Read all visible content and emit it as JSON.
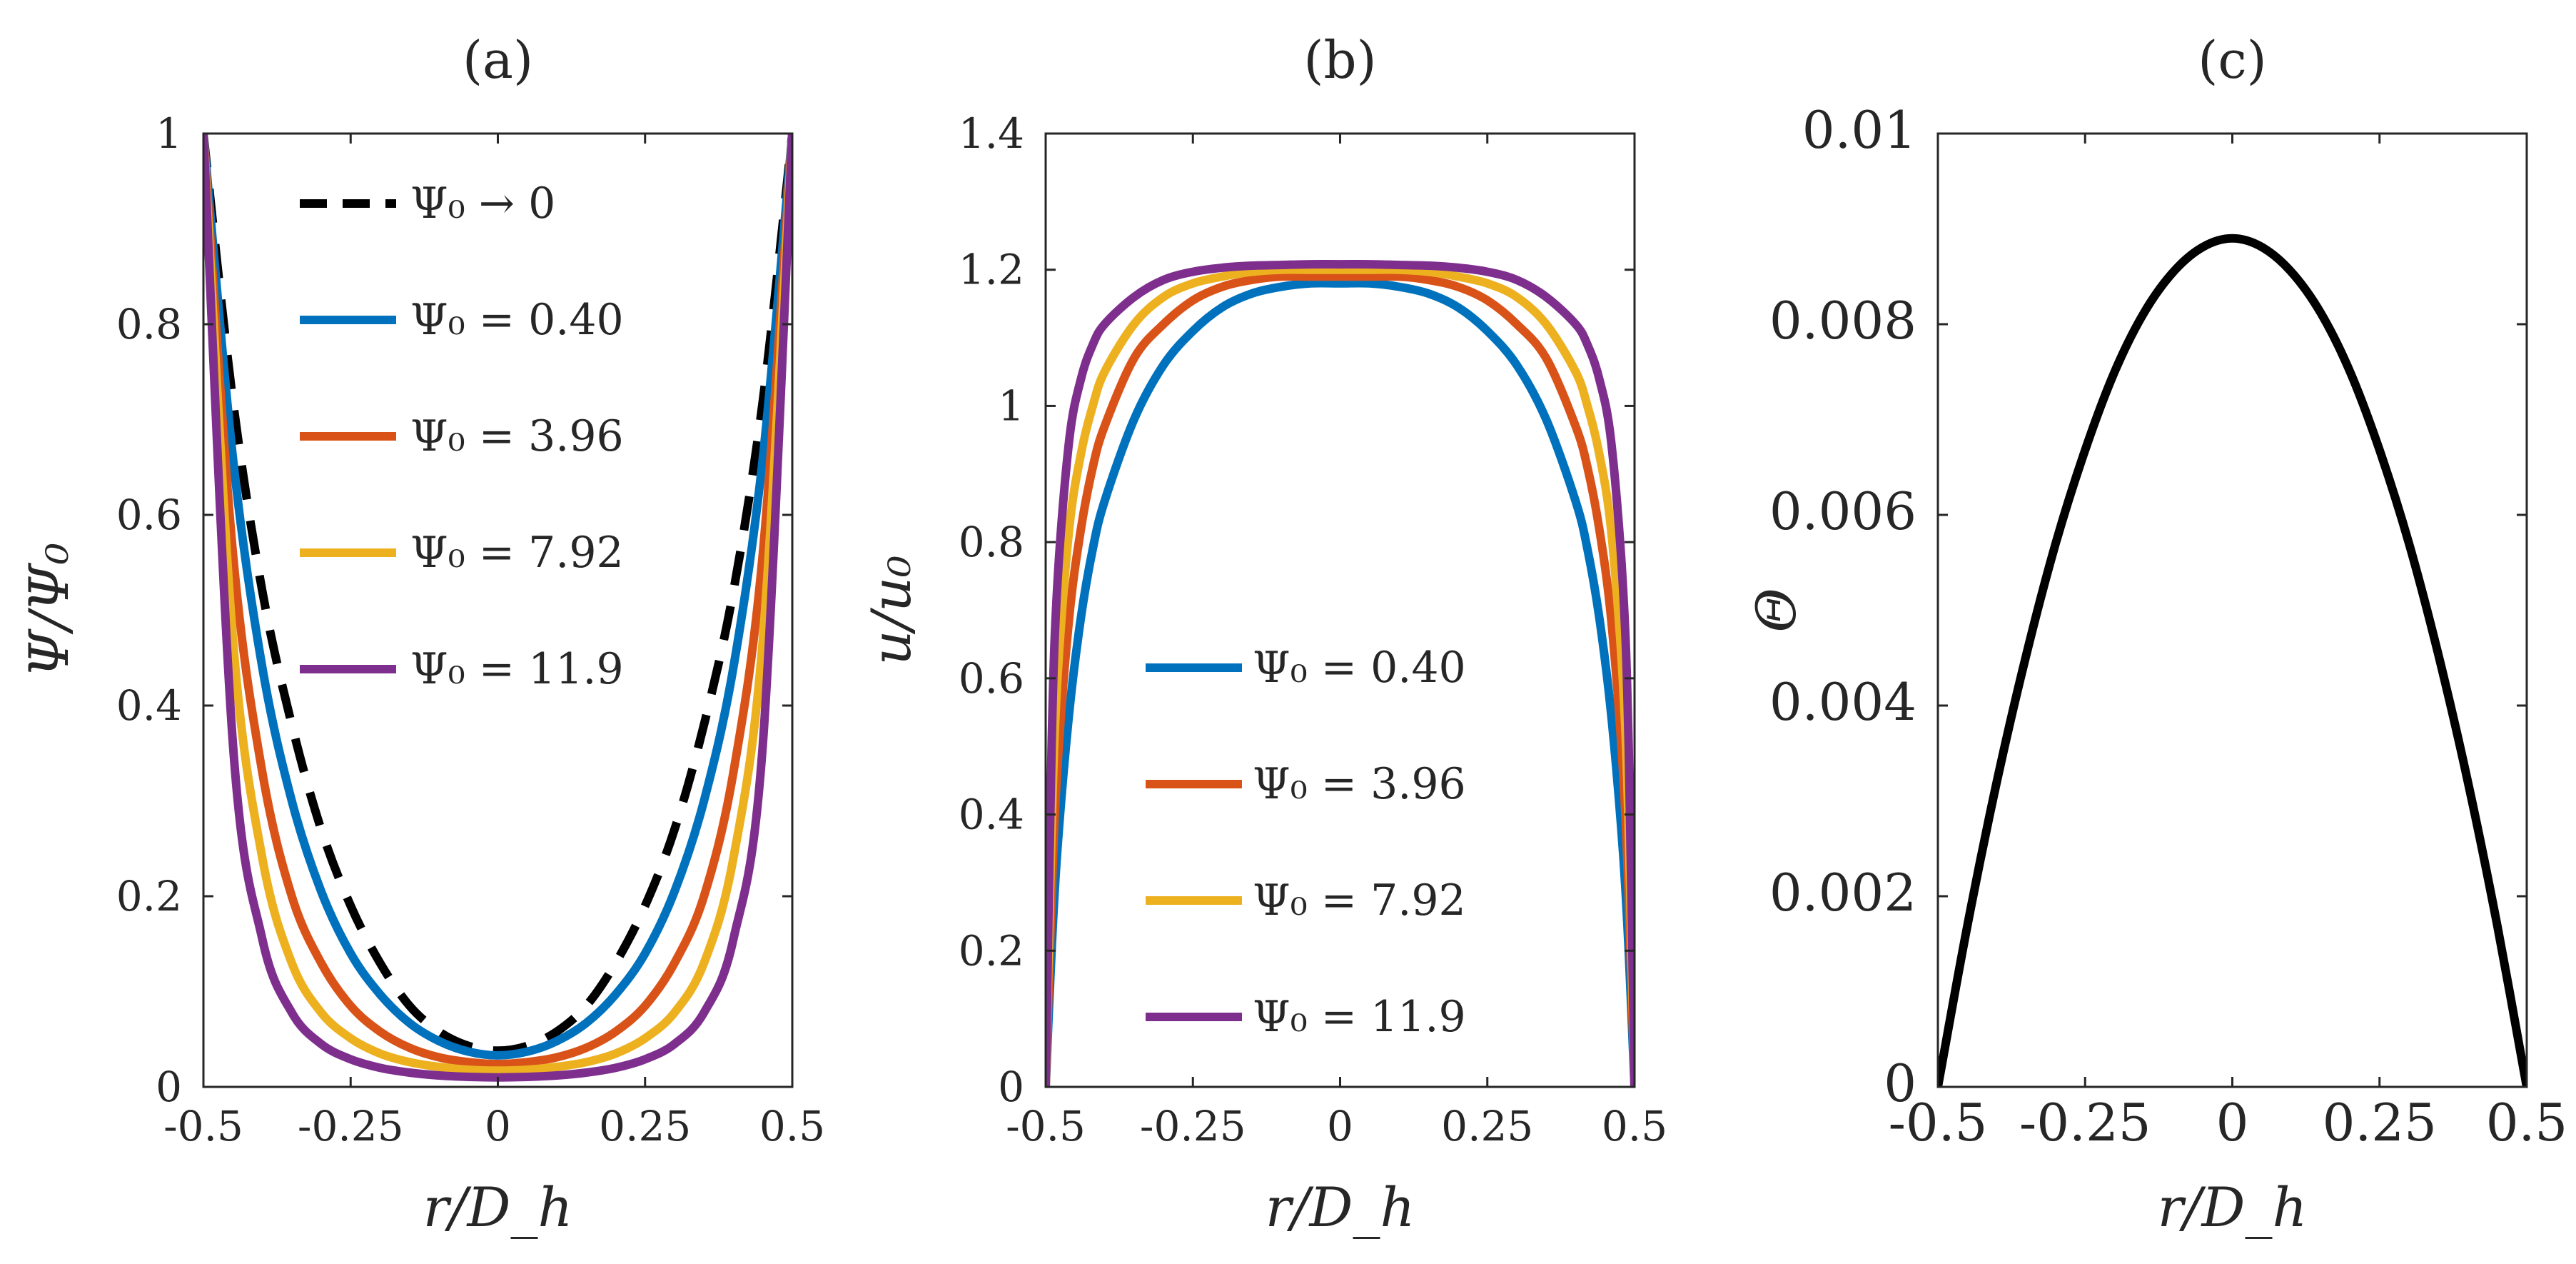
{
  "figure": {
    "panels": [
      "(a)",
      "(b)",
      "(c)"
    ]
  },
  "colors": {
    "black": "#000000",
    "blue": "#0072BD",
    "orange": "#D95319",
    "yellow": "#EDB120",
    "purple": "#7E2F8E"
  },
  "chart_data": [
    {
      "type": "line",
      "panel": "(a)",
      "title": "(a)",
      "xlabel": "r/D_h",
      "ylabel": "Ψ/Ψ₀",
      "xlim": [
        -0.5,
        0.5
      ],
      "ylim": [
        0,
        1
      ],
      "xticks": [
        -0.5,
        -0.25,
        0,
        0.25,
        0.5
      ],
      "xtick_labels": [
        "-0.5",
        "-0.25",
        "0",
        "0.25",
        "0.5"
      ],
      "yticks": [
        0,
        0.2,
        0.4,
        0.6,
        0.8,
        1
      ],
      "ytick_labels": [
        "0",
        "0.2",
        "0.4",
        "0.6",
        "0.8",
        "1"
      ],
      "grid": false,
      "legend_position": "upper-center",
      "x": [
        -0.5,
        -0.45,
        -0.4,
        -0.35,
        -0.3,
        -0.25,
        -0.2,
        -0.15,
        -0.1,
        -0.05,
        0,
        0.05,
        0.1,
        0.15,
        0.2,
        0.25,
        0.3,
        0.35,
        0.4,
        0.45,
        0.5
      ],
      "series": [
        {
          "name": "Ψ₀ → 0",
          "color": "#000000",
          "dash": true,
          "values": [
            1.0,
            0.72,
            0.52,
            0.38,
            0.27,
            0.19,
            0.13,
            0.085,
            0.058,
            0.043,
            0.038,
            0.043,
            0.058,
            0.085,
            0.13,
            0.19,
            0.27,
            0.38,
            0.52,
            0.72,
            1.0
          ]
        },
        {
          "name": "Ψ₀ = 0.40",
          "color": "#0072BD",
          "dash": false,
          "values": [
            1.0,
            0.66,
            0.44,
            0.3,
            0.205,
            0.14,
            0.097,
            0.067,
            0.048,
            0.037,
            0.033,
            0.037,
            0.048,
            0.067,
            0.097,
            0.14,
            0.205,
            0.3,
            0.44,
            0.66,
            1.0
          ]
        },
        {
          "name": "Ψ₀ = 3.96",
          "color": "#D95319",
          "dash": false,
          "values": [
            1.0,
            0.56,
            0.33,
            0.2,
            0.13,
            0.085,
            0.058,
            0.041,
            0.031,
            0.026,
            0.024,
            0.026,
            0.031,
            0.041,
            0.058,
            0.085,
            0.13,
            0.2,
            0.33,
            0.56,
            1.0
          ]
        },
        {
          "name": "Ψ₀ = 7.92",
          "color": "#EDB120",
          "dash": false,
          "values": [
            1.0,
            0.47,
            0.24,
            0.13,
            0.078,
            0.051,
            0.035,
            0.026,
            0.021,
            0.018,
            0.017,
            0.018,
            0.021,
            0.026,
            0.035,
            0.051,
            0.078,
            0.13,
            0.24,
            0.47,
            1.0
          ]
        },
        {
          "name": "Ψ₀ = 11.9",
          "color": "#7E2F8E",
          "dash": false,
          "values": [
            1.0,
            0.36,
            0.155,
            0.078,
            0.045,
            0.029,
            0.02,
            0.015,
            0.012,
            0.0105,
            0.01,
            0.0105,
            0.012,
            0.015,
            0.02,
            0.029,
            0.045,
            0.078,
            0.155,
            0.36,
            1.0
          ]
        }
      ]
    },
    {
      "type": "line",
      "panel": "(b)",
      "title": "(b)",
      "xlabel": "r/D_h",
      "ylabel": "u/u₀",
      "xlim": [
        -0.5,
        0.5
      ],
      "ylim": [
        0,
        1.4
      ],
      "xticks": [
        -0.5,
        -0.25,
        0,
        0.25,
        0.5
      ],
      "xtick_labels": [
        "-0.5",
        "-0.25",
        "0",
        "0.25",
        "0.5"
      ],
      "yticks": [
        0,
        0.2,
        0.4,
        0.6,
        0.8,
        1,
        1.2,
        1.4
      ],
      "ytick_labels": [
        "0",
        "0.2",
        "0.4",
        "0.6",
        "0.8",
        "1",
        "1.2",
        "1.4"
      ],
      "grid": false,
      "legend_position": "lower-center",
      "x": [
        -0.5,
        -0.49,
        -0.48,
        -0.46,
        -0.44,
        -0.42,
        -0.4,
        -0.35,
        -0.3,
        -0.25,
        -0.2,
        -0.15,
        -0.1,
        -0.05,
        0,
        0.05,
        0.1,
        0.15,
        0.2,
        0.25,
        0.3,
        0.35,
        0.4,
        0.42,
        0.44,
        0.46,
        0.48,
        0.49,
        0.5
      ],
      "series": [
        {
          "name": "Ψ₀ = 0.40",
          "color": "#0072BD",
          "dash": false,
          "values": [
            0,
            0.2,
            0.35,
            0.55,
            0.69,
            0.79,
            0.86,
            0.98,
            1.06,
            1.11,
            1.145,
            1.165,
            1.175,
            1.18,
            1.18,
            1.18,
            1.175,
            1.165,
            1.145,
            1.11,
            1.06,
            0.98,
            0.86,
            0.79,
            0.69,
            0.55,
            0.35,
            0.2,
            0
          ]
        },
        {
          "name": "Ψ₀ = 3.96",
          "color": "#D95319",
          "dash": false,
          "values": [
            0,
            0.28,
            0.47,
            0.69,
            0.82,
            0.91,
            0.97,
            1.07,
            1.12,
            1.155,
            1.175,
            1.185,
            1.19,
            1.19,
            1.19,
            1.19,
            1.19,
            1.185,
            1.175,
            1.155,
            1.12,
            1.07,
            0.97,
            0.91,
            0.82,
            0.69,
            0.47,
            0.28,
            0
          ]
        },
        {
          "name": "Ψ₀ = 7.92",
          "color": "#EDB120",
          "dash": false,
          "values": [
            0,
            0.38,
            0.6,
            0.82,
            0.93,
            1.0,
            1.05,
            1.12,
            1.16,
            1.18,
            1.19,
            1.197,
            1.2,
            1.2,
            1.2,
            1.2,
            1.2,
            1.197,
            1.19,
            1.18,
            1.16,
            1.12,
            1.05,
            1.0,
            0.93,
            0.82,
            0.6,
            0.38,
            0
          ]
        },
        {
          "name": "Ψ₀ = 11.9",
          "color": "#7E2F8E",
          "dash": false,
          "values": [
            0,
            0.5,
            0.74,
            0.95,
            1.04,
            1.09,
            1.12,
            1.16,
            1.185,
            1.197,
            1.203,
            1.206,
            1.207,
            1.208,
            1.208,
            1.208,
            1.207,
            1.206,
            1.203,
            1.197,
            1.185,
            1.16,
            1.12,
            1.09,
            1.04,
            0.95,
            0.74,
            0.5,
            0
          ]
        }
      ]
    },
    {
      "type": "line",
      "panel": "(c)",
      "title": "(c)",
      "xlabel": "r/D_h",
      "ylabel": "Θ",
      "xlim": [
        -0.5,
        0.5
      ],
      "ylim": [
        0,
        0.01
      ],
      "xticks": [
        -0.5,
        -0.25,
        0,
        0.25,
        0.5
      ],
      "xtick_labels": [
        "-0.5",
        "-0.25",
        "0",
        "0.25",
        "0.5"
      ],
      "yticks": [
        0,
        0.002,
        0.004,
        0.006,
        0.008,
        0.01
      ],
      "ytick_labels": [
        "0",
        "0.002",
        "0.004",
        "0.006",
        "0.008",
        "0.01"
      ],
      "grid": false,
      "x": [
        -0.5,
        -0.45,
        -0.4,
        -0.35,
        -0.3,
        -0.25,
        -0.2,
        -0.15,
        -0.1,
        -0.05,
        0,
        0.05,
        0.1,
        0.15,
        0.2,
        0.25,
        0.3,
        0.35,
        0.4,
        0.45,
        0.5
      ],
      "series": [
        {
          "color": "#000000",
          "dash": false,
          "values": [
            0,
            0.00169,
            0.0032,
            0.00453,
            0.0057,
            0.00668,
            0.0075,
            0.00812,
            0.00855,
            0.00881,
            0.0089,
            0.00881,
            0.00855,
            0.00812,
            0.0075,
            0.00668,
            0.0057,
            0.00453,
            0.0032,
            0.00169,
            0
          ]
        }
      ]
    }
  ]
}
